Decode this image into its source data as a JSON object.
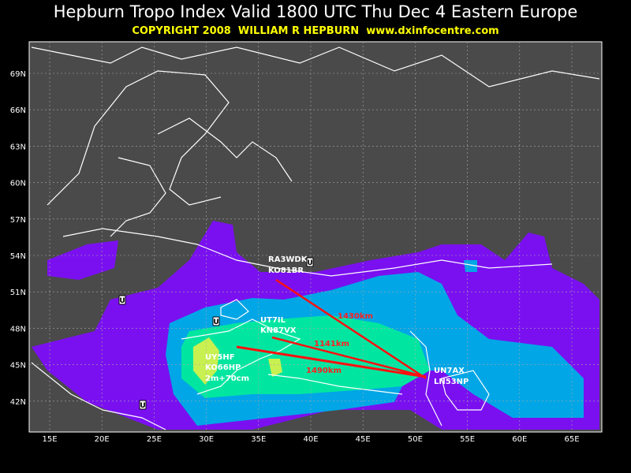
{
  "header": {
    "title": "Hepburn Tropo Index Valid 1800 UTC Thu Dec 4 Eastern Europe",
    "subtitle": "COPYRIGHT 2008  WILLIAM R HEPBURN  www.dxinfocentre.com"
  },
  "map": {
    "lat_labels": [
      "69N",
      "66N",
      "63N",
      "60N",
      "57N",
      "54N",
      "51N",
      "48N",
      "45N",
      "42N"
    ],
    "lon_labels": [
      "15E",
      "20E",
      "25E",
      "30E",
      "35E",
      "40E",
      "45E",
      "50E",
      "55E",
      "60E",
      "65E"
    ],
    "stations": [
      {
        "call": "RA3WDK",
        "locator": "KO81BR"
      },
      {
        "call": "UT7IL",
        "locator": "KN87VX"
      },
      {
        "call": "UY5HF",
        "locator": "KO66HP",
        "note": "2m+70cm"
      },
      {
        "call": "UN7AX",
        "locator": "LN53NP"
      }
    ],
    "paths": [
      {
        "distance": "1430km"
      },
      {
        "distance": "1141km"
      },
      {
        "distance": "1490km"
      }
    ],
    "markers": [
      "U",
      "U",
      "U",
      "U"
    ]
  }
}
